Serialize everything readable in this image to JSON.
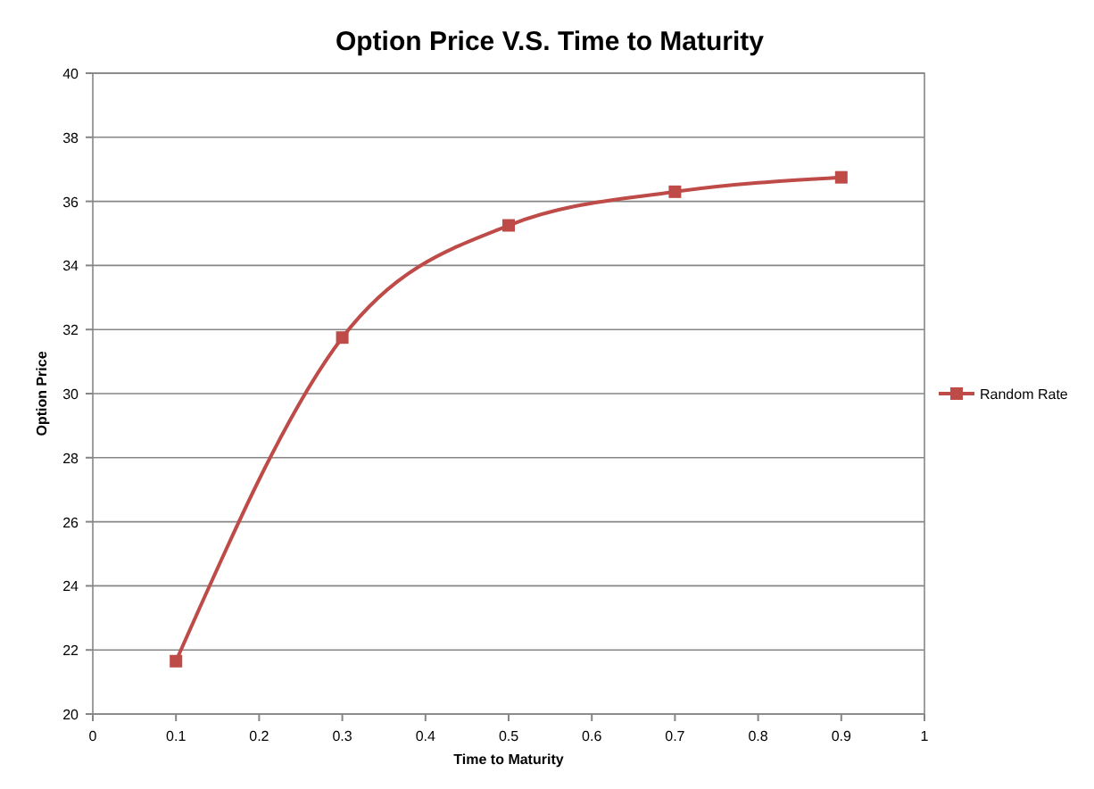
{
  "chart_data": {
    "type": "line",
    "title": "Option Price V.S. Time to Maturity",
    "xlabel": "Time to Maturity",
    "ylabel": "Option Price",
    "x": [
      0.1,
      0.3,
      0.5,
      0.7,
      0.9
    ],
    "series": [
      {
        "name": "Random Rate",
        "color": "#be4b48",
        "values": [
          21.65,
          31.75,
          35.25,
          36.3,
          36.75
        ]
      }
    ],
    "xlim": [
      0,
      1
    ],
    "xticks": [
      0,
      0.1,
      0.2,
      0.3,
      0.4,
      0.5,
      0.6,
      0.7,
      0.8,
      0.9,
      1
    ],
    "ylim": [
      20,
      40
    ],
    "yticks": [
      20,
      22,
      24,
      26,
      28,
      30,
      32,
      34,
      36,
      38,
      40
    ],
    "grid": "y",
    "legend": "right",
    "marker": "square",
    "line_style": "solid"
  }
}
